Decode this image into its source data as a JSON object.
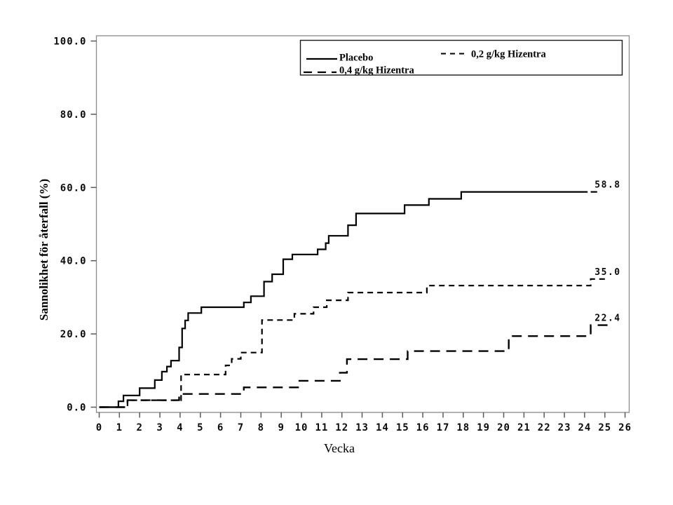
{
  "figure": {
    "background": "#ffffff",
    "curve_color": "#000000",
    "frame_color": "#8a8a8a",
    "tick_color": "#5a5a5a"
  },
  "chart_data": {
    "type": "line",
    "step": true,
    "title": "",
    "xlabel": "Vecka",
    "ylabel": "Sannolikhet för återfall (%)",
    "xlim": [
      0,
      26
    ],
    "ylim": [
      0,
      100
    ],
    "grid": false,
    "legend_position": "top-inside",
    "x_ticks": [
      0,
      1,
      2,
      3,
      4,
      5,
      6,
      7,
      8,
      9,
      10,
      11,
      12,
      13,
      14,
      15,
      16,
      17,
      18,
      19,
      20,
      21,
      22,
      23,
      24,
      25,
      26
    ],
    "y_ticks": [
      {
        "value": 0,
        "label": "0.0"
      },
      {
        "value": 20,
        "label": "20.0"
      },
      {
        "value": 40,
        "label": "40.0"
      },
      {
        "value": 60,
        "label": "60.0"
      },
      {
        "value": 80,
        "label": "80.0"
      },
      {
        "value": 100,
        "label": "100.0"
      }
    ],
    "series": [
      {
        "name": "Placebo",
        "style": "solid",
        "end_label": "58.8",
        "final_value": 58.8,
        "end_week": 24.15,
        "tail": [
          24.3,
          24.62
        ],
        "steps": [
          [
            0,
            0
          ],
          [
            0.95,
            1.6
          ],
          [
            1.2,
            3.2
          ],
          [
            2.0,
            5.2
          ],
          [
            2.75,
            7.4
          ],
          [
            3.1,
            9.7
          ],
          [
            3.35,
            11.1
          ],
          [
            3.55,
            12.7
          ],
          [
            3.95,
            16.3
          ],
          [
            4.1,
            21.5
          ],
          [
            4.25,
            23.7
          ],
          [
            4.4,
            25.7
          ],
          [
            5.05,
            27.3
          ],
          [
            7.15,
            28.6
          ],
          [
            7.5,
            30.3
          ],
          [
            8.15,
            34.3
          ],
          [
            8.55,
            36.3
          ],
          [
            9.1,
            40.4
          ],
          [
            9.55,
            41.7
          ],
          [
            10.8,
            43.1
          ],
          [
            11.2,
            44.8
          ],
          [
            11.35,
            46.8
          ],
          [
            12.3,
            49.7
          ],
          [
            12.7,
            52.9
          ],
          [
            15.1,
            55.2
          ],
          [
            16.3,
            56.9
          ],
          [
            17.9,
            58.8
          ]
        ]
      },
      {
        "name": "0,2 g/kg Hizentra",
        "style": "short-dash",
        "end_label": "35.0",
        "final_value": 35.0,
        "end_week": 25.15,
        "steps": [
          [
            0,
            0
          ],
          [
            1.4,
            1.9
          ],
          [
            4.05,
            8.9
          ],
          [
            6.25,
            11.4
          ],
          [
            6.55,
            13.2
          ],
          [
            7.0,
            14.9
          ],
          [
            8.05,
            23.8
          ],
          [
            9.65,
            25.5
          ],
          [
            10.6,
            27.3
          ],
          [
            11.25,
            29.2
          ],
          [
            12.3,
            31.3
          ],
          [
            16.2,
            33.2
          ],
          [
            24.3,
            35.0
          ]
        ]
      },
      {
        "name": "0,4 g/kg Hizentra",
        "style": "long-dash",
        "end_label": "22.4",
        "final_value": 22.4,
        "end_week": 25.2,
        "steps": [
          [
            0,
            0
          ],
          [
            1.4,
            1.9
          ],
          [
            3.95,
            3.6
          ],
          [
            7.15,
            5.4
          ],
          [
            9.9,
            7.2
          ],
          [
            11.9,
            9.4
          ],
          [
            12.25,
            13.1
          ],
          [
            15.25,
            15.3
          ],
          [
            20.25,
            19.4
          ],
          [
            24.3,
            22.4
          ]
        ]
      }
    ],
    "legend": {
      "entries": [
        {
          "label": "Placebo",
          "style": "solid"
        },
        {
          "label": "0,2 g/kg Hizentra",
          "style": "short-dash"
        },
        {
          "label": "0,4 g/kg Hizentra",
          "style": "long-dash"
        }
      ]
    }
  }
}
